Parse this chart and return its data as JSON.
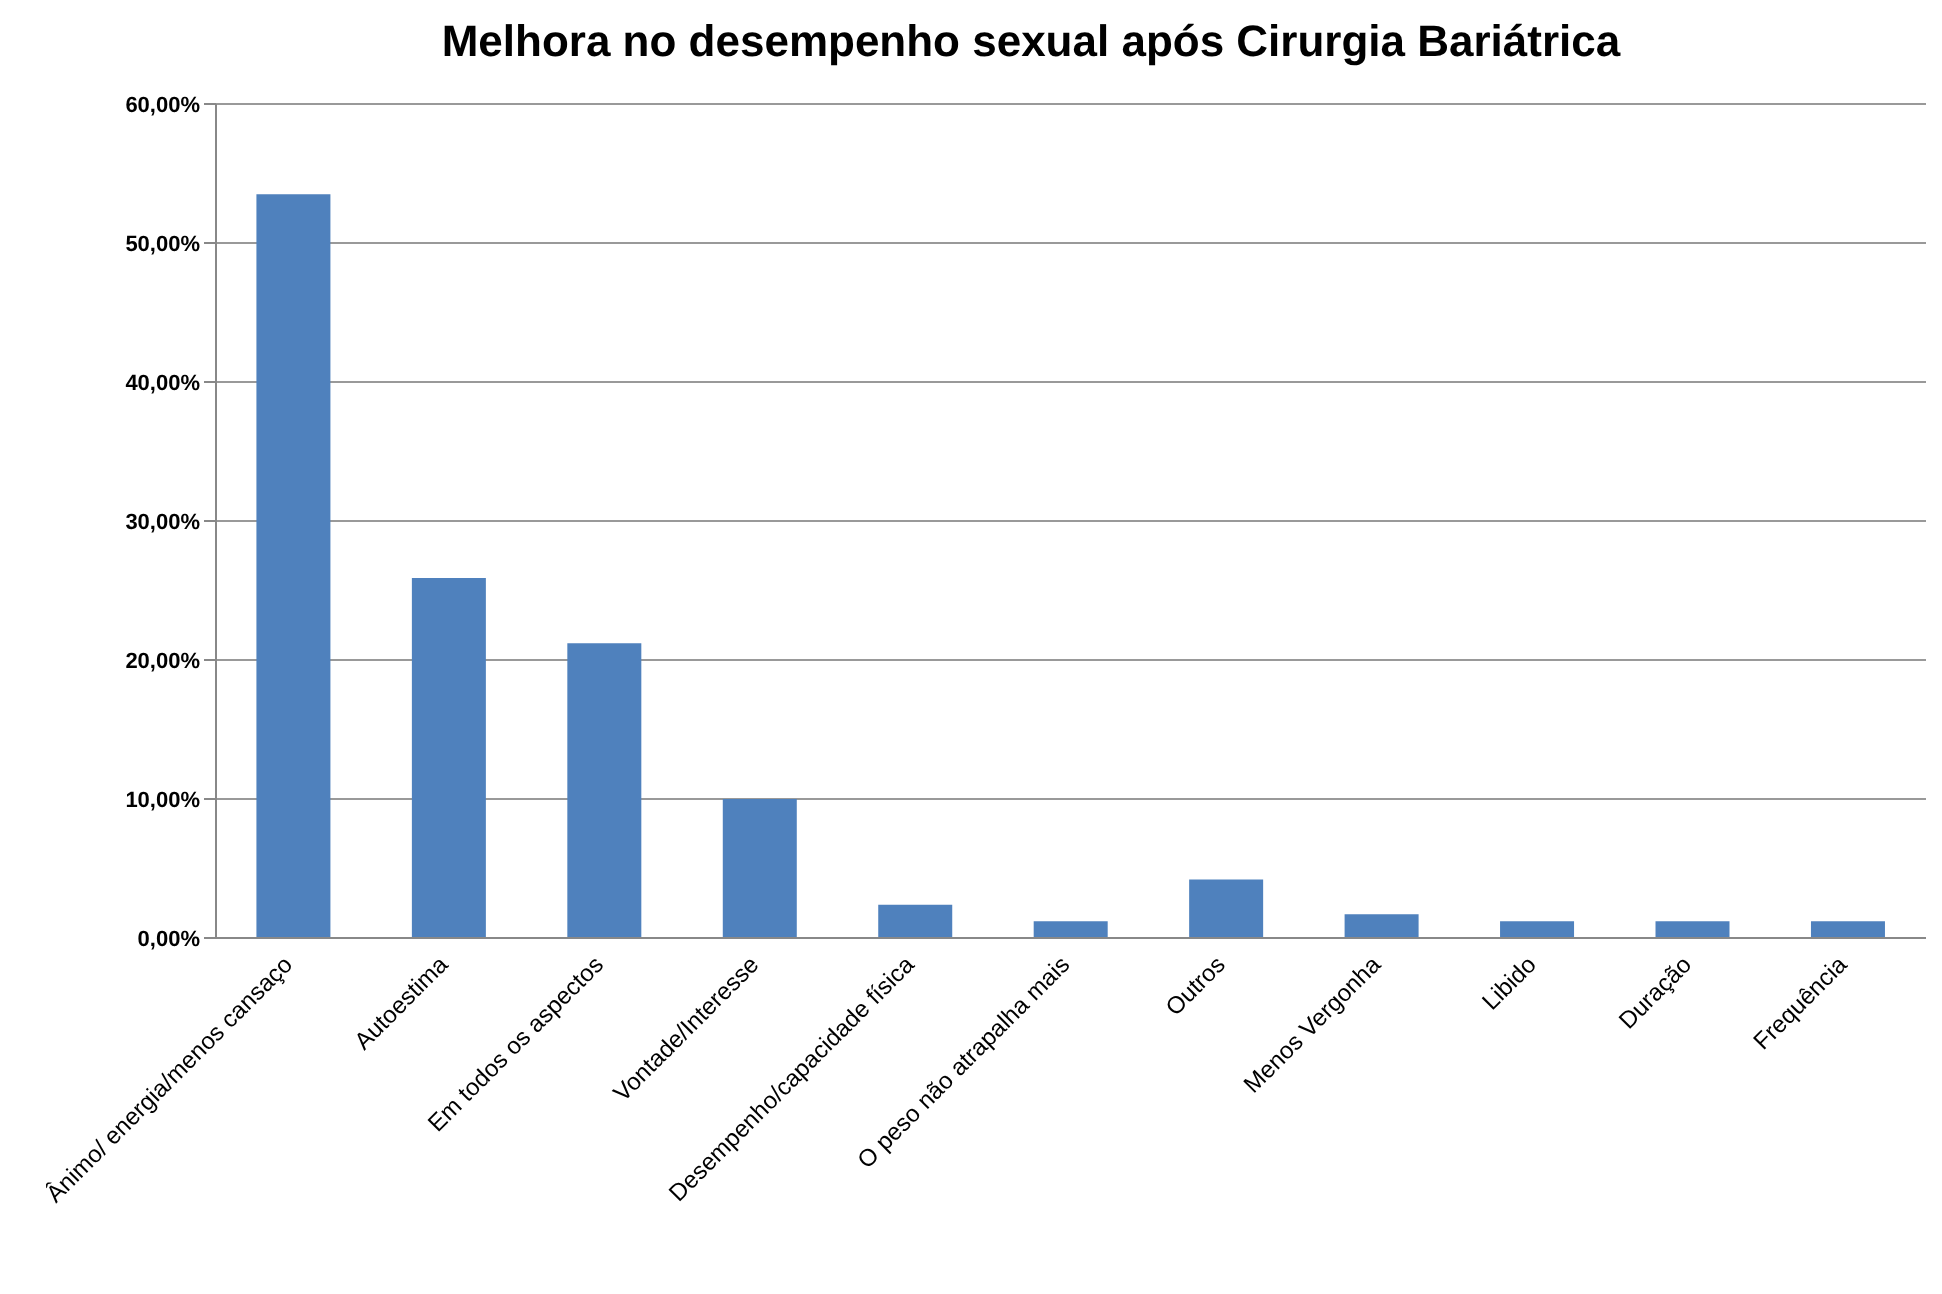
{
  "chart_data": {
    "type": "bar",
    "title": "Melhora no desempenho sexual após Cirurgia Bariátrica",
    "categories": [
      "Ânimo/ energia/menos cansaço",
      "Autoestima",
      "Em todos os aspectos",
      "Vontade/Interesse",
      "Desempenho/capacidade física",
      "O peso não atrapalha mais",
      "Outros",
      "Menos Vergonha",
      "Libido",
      "Duração",
      "Frequência"
    ],
    "values": [
      53.5,
      25.9,
      21.2,
      10.0,
      2.4,
      1.2,
      4.2,
      1.7,
      1.2,
      1.2,
      1.2
    ],
    "color": "#4f81bd",
    "ylim": [
      0,
      60
    ],
    "yticks": [
      {
        "value": 0,
        "label": "0,00%"
      },
      {
        "value": 10,
        "label": "10,00%"
      },
      {
        "value": 20,
        "label": "20,00%"
      },
      {
        "value": 30,
        "label": "30,00%"
      },
      {
        "value": 40,
        "label": "40,00%"
      },
      {
        "value": 50,
        "label": "50,00%"
      },
      {
        "value": 60,
        "label": "60,00%"
      }
    ],
    "grid": "y",
    "legend": false
  }
}
